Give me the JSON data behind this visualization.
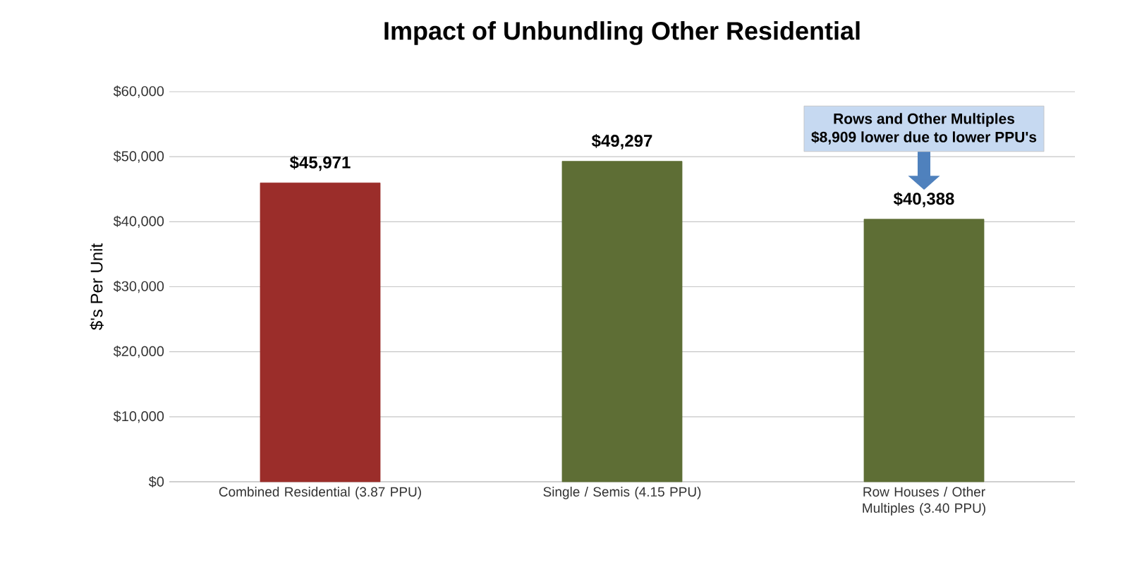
{
  "chart_data": {
    "type": "bar",
    "title": "Impact of Unbundling Other Residential",
    "ylabel": "$'s Per Unit",
    "categories": [
      "Combined Residential (3.87 PPU)",
      "Single / Semis (4.15 PPU)",
      "Row Houses / Other Multiples (3.40 PPU)"
    ],
    "values": [
      45971,
      49297,
      40388
    ],
    "value_labels": [
      "$45,971",
      "$49,297",
      "$40,388"
    ],
    "colors": [
      "#9b2d2a",
      "#5e6e35",
      "#5e6e35"
    ],
    "ylim": [
      0,
      60000
    ],
    "yticks": [
      {
        "value": 0,
        "label": "$0"
      },
      {
        "value": 10000,
        "label": "$10,000"
      },
      {
        "value": 20000,
        "label": "$20,000"
      },
      {
        "value": 30000,
        "label": "$30,000"
      },
      {
        "value": 40000,
        "label": "$40,000"
      },
      {
        "value": 50000,
        "label": "$50,000"
      },
      {
        "value": 60000,
        "label": "$60,000"
      }
    ],
    "grid": "y",
    "annotations": [
      "Rows and Other Multiples",
      "$8,909 lower due to lower PPU's"
    ]
  }
}
